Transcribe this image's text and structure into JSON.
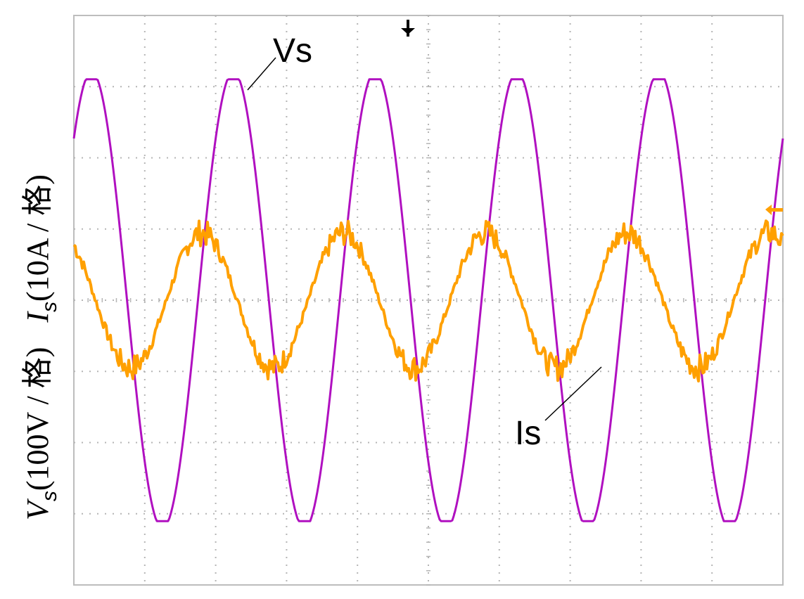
{
  "chart_data": {
    "type": "line",
    "title": "",
    "ylabel_voltage": {
      "symbol": "V",
      "subscript": "s",
      "units": "(100V / 格)"
    },
    "ylabel_current": {
      "symbol": "I",
      "subscript": "s",
      "units": "(10A / 格)"
    },
    "grid": true,
    "grid_divisions": {
      "x": 10,
      "y": 8
    },
    "series": [
      {
        "name": "Vs",
        "color": "#b010c0",
        "divisions_per_cycle": 2.0,
        "amplitude_div": 3.15,
        "phase_deg": 45,
        "offset_div": 0.0
      },
      {
        "name": "Is",
        "color": "#ffa000",
        "divisions_per_cycle": 2.0,
        "amplitude_div": 0.95,
        "phase_deg": 125,
        "offset_div": 0.0
      }
    ],
    "annotations": [
      {
        "text": "Vs",
        "series": "Vs"
      },
      {
        "text": "Is",
        "series": "Is"
      }
    ]
  }
}
